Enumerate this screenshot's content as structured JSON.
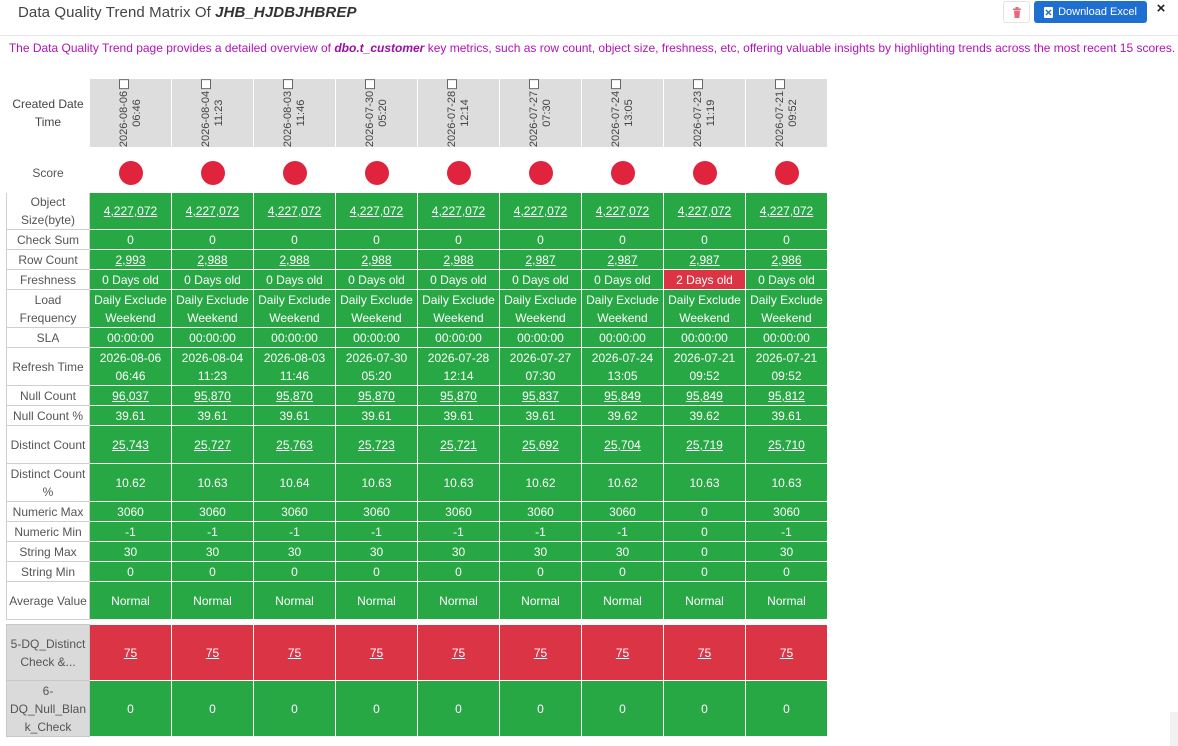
{
  "header": {
    "title_prefix": "Data Quality Trend Matrix Of ",
    "title_name": "JHB_HJDBJHBREP",
    "download_label": "Download Excel",
    "close_label": "×"
  },
  "description": {
    "prefix": "The Data Quality Trend page provides a detailed overview of ",
    "table_name": "dbo.t_customer",
    "suffix": " key metrics, such as row count, object size, freshness, etc, offering valuable insights by highlighting trends across the most recent 15 scores."
  },
  "colors": {
    "green": "#27a844",
    "red": "#db3545",
    "dot": "#e0243e",
    "accent": "#1f6fd1",
    "desc": "#b212b7"
  },
  "labels": {
    "created": "Created Date Time",
    "score": "Score",
    "object_size": "Object Size(byte)",
    "check_sum": "Check Sum",
    "row_count": "Row Count",
    "freshness": "Freshness",
    "load_frequency": "Load Frequency",
    "sla": "SLA",
    "refresh_time": "Refresh Time",
    "null_count": "Null Count",
    "null_pct": "Null Count %",
    "distinct_count": "Distinct Count",
    "distinct_pct": "Distinct Count %",
    "numeric_max": "Numeric Max",
    "numeric_min": "Numeric Min",
    "string_max": "String Max",
    "string_min": "String Min",
    "average_value": "Average Value",
    "rule5": "5-DQ_Distinct Check &...",
    "rule6": "6-DQ_Null_Blan k_Check"
  },
  "columns": [
    {
      "date": "2026-08-06",
      "time": "06:46",
      "object_size": "4,227,072",
      "check_sum": "0",
      "row_count": "2,993",
      "freshness": "0 Days old",
      "load_a": "Daily Exclude",
      "load_b": "Weekend",
      "sla": "00:00:00",
      "refresh_date": "2026-08-06",
      "refresh_time": "06:46",
      "null_count": "96,037",
      "null_pct": "39.61",
      "distinct_count": "25,743",
      "distinct_pct": "10.62",
      "numeric_max": "3060",
      "numeric_min": "-1",
      "string_max": "30",
      "string_min": "0",
      "average": "Normal",
      "rule5": "75",
      "rule6": "0"
    },
    {
      "date": "2026-08-04",
      "time": "11:23",
      "object_size": "4,227,072",
      "check_sum": "0",
      "row_count": "2,988",
      "freshness": "0 Days old",
      "load_a": "Daily Exclude",
      "load_b": "Weekend",
      "sla": "00:00:00",
      "refresh_date": "2026-08-04",
      "refresh_time": "11:23",
      "null_count": "95,870",
      "null_pct": "39.61",
      "distinct_count": "25,727",
      "distinct_pct": "10.63",
      "numeric_max": "3060",
      "numeric_min": "-1",
      "string_max": "30",
      "string_min": "0",
      "average": "Normal",
      "rule5": "75",
      "rule6": "0"
    },
    {
      "date": "2026-08-03",
      "time": "11:46",
      "object_size": "4,227,072",
      "check_sum": "0",
      "row_count": "2,988",
      "freshness": "0 Days old",
      "load_a": "Daily Exclude",
      "load_b": "Weekend",
      "sla": "00:00:00",
      "refresh_date": "2026-08-03",
      "refresh_time": "11:46",
      "null_count": "95,870",
      "null_pct": "39.61",
      "distinct_count": "25,763",
      "distinct_pct": "10.64",
      "numeric_max": "3060",
      "numeric_min": "-1",
      "string_max": "30",
      "string_min": "0",
      "average": "Normal",
      "rule5": "75",
      "rule6": "0"
    },
    {
      "date": "2026-07-30",
      "time": "05:20",
      "object_size": "4,227,072",
      "check_sum": "0",
      "row_count": "2,988",
      "freshness": "0 Days old",
      "load_a": "Daily Exclude",
      "load_b": "Weekend",
      "sla": "00:00:00",
      "refresh_date": "2026-07-30",
      "refresh_time": "05:20",
      "null_count": "95,870",
      "null_pct": "39.61",
      "distinct_count": "25,723",
      "distinct_pct": "10.63",
      "numeric_max": "3060",
      "numeric_min": "-1",
      "string_max": "30",
      "string_min": "0",
      "average": "Normal",
      "rule5": "75",
      "rule6": "0"
    },
    {
      "date": "2026-07-28",
      "time": "12:14",
      "object_size": "4,227,072",
      "check_sum": "0",
      "row_count": "2,988",
      "freshness": "0 Days old",
      "load_a": "Daily Exclude",
      "load_b": "Weekend",
      "sla": "00:00:00",
      "refresh_date": "2026-07-28",
      "refresh_time": "12:14",
      "null_count": "95,870",
      "null_pct": "39.61",
      "distinct_count": "25,721",
      "distinct_pct": "10.63",
      "numeric_max": "3060",
      "numeric_min": "-1",
      "string_max": "30",
      "string_min": "0",
      "average": "Normal",
      "rule5": "75",
      "rule6": "0"
    },
    {
      "date": "2026-07-27",
      "time": "07:30",
      "object_size": "4,227,072",
      "check_sum": "0",
      "row_count": "2,987",
      "freshness": "0 Days old",
      "load_a": "Daily Exclude",
      "load_b": "Weekend",
      "sla": "00:00:00",
      "refresh_date": "2026-07-27",
      "refresh_time": "07:30",
      "null_count": "95,837",
      "null_pct": "39.61",
      "distinct_count": "25,692",
      "distinct_pct": "10.62",
      "numeric_max": "3060",
      "numeric_min": "-1",
      "string_max": "30",
      "string_min": "0",
      "average": "Normal",
      "rule5": "75",
      "rule6": "0"
    },
    {
      "date": "2026-07-24",
      "time": "13:05",
      "object_size": "4,227,072",
      "check_sum": "0",
      "row_count": "2,987",
      "freshness": "0 Days old",
      "load_a": "Daily Exclude",
      "load_b": "Weekend",
      "sla": "00:00:00",
      "refresh_date": "2026-07-24",
      "refresh_time": "13:05",
      "null_count": "95,849",
      "null_pct": "39.62",
      "distinct_count": "25,704",
      "distinct_pct": "10.62",
      "numeric_max": "3060",
      "numeric_min": "-1",
      "string_max": "30",
      "string_min": "0",
      "average": "Normal",
      "rule5": "75",
      "rule6": "0"
    },
    {
      "date": "2026-07-23",
      "time": "11:19",
      "object_size": "4,227,072",
      "check_sum": "0",
      "row_count": "2,987",
      "freshness": "2 Days old",
      "freshness_red": true,
      "load_a": "Daily Exclude",
      "load_b": "Weekend",
      "sla": "00:00:00",
      "refresh_date": "2026-07-21",
      "refresh_time": "09:52",
      "null_count": "95,849",
      "null_pct": "39.62",
      "distinct_count": "25,719",
      "distinct_pct": "10.63",
      "numeric_max": "0",
      "numeric_min": "0",
      "string_max": "0",
      "string_min": "0",
      "average": "Normal",
      "rule5": "75",
      "rule6": "0"
    },
    {
      "date": "2026-07-21",
      "time": "09:52",
      "object_size": "4,227,072",
      "check_sum": "0",
      "row_count": "2,986",
      "freshness": "0 Days old",
      "load_a": "Daily Exclude",
      "load_b": "Weekend",
      "sla": "00:00:00",
      "refresh_date": "2026-07-21",
      "refresh_time": "09:52",
      "null_count": "95,812",
      "null_pct": "39.61",
      "distinct_count": "25,710",
      "distinct_pct": "10.63",
      "numeric_max": "3060",
      "numeric_min": "-1",
      "string_max": "30",
      "string_min": "0",
      "average": "Normal",
      "rule5": "75",
      "rule6": "0"
    }
  ]
}
